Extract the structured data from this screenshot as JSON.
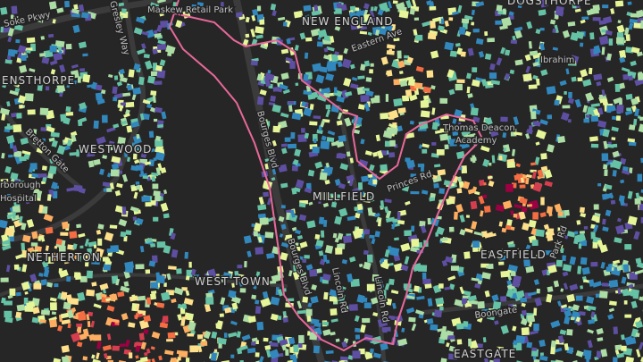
{
  "map": {
    "places": [
      "NEW ENGLAND",
      "DOGSTHORPE",
      "ENSTHORPE",
      "WESTWOOD",
      "MILLFIELD",
      "EASTFIELD",
      "NETHERTON",
      "WEST TOWN",
      "EASTGATE"
    ],
    "roads": [
      "Soke Pkwy",
      "Gresley Way",
      "Bretton Gate",
      "Bourges Blvd",
      "Bourges Blvd",
      "Lincoln Rd",
      "Lincoln Rd",
      "Boongate",
      "Eastern Ave",
      "Princes Rd",
      "Park Rd"
    ],
    "landmarks": [
      "Maskew Retail Park",
      "rborough",
      "Hospital",
      "Thomas Deacon",
      "Academy",
      "Ibrahim"
    ]
  }
}
